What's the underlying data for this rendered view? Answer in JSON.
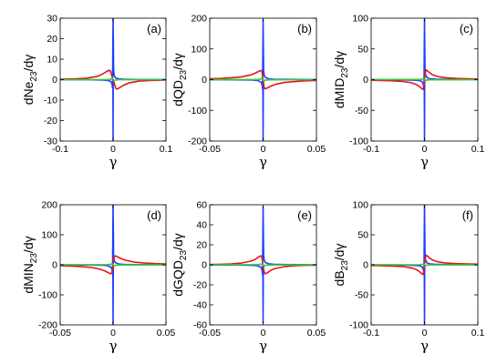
{
  "chart_data": [
    {
      "type": "line",
      "panel_label": "(a)",
      "ylabel": {
        "base": "dNe",
        "sub": "23",
        "tail": "/dγ"
      },
      "xlabel": "γ",
      "xlim": [
        -0.1,
        0.1
      ],
      "ylim": [
        -30,
        30
      ],
      "xticks": [
        -0.1,
        0,
        0.1
      ],
      "xticklabels": [
        "-0.1",
        "0",
        "0.1"
      ],
      "yticks": [
        -30,
        -20,
        -10,
        0,
        10,
        20,
        30
      ],
      "yticklabels": [
        "-30",
        "-20",
        "-10",
        "0",
        "10",
        "20",
        "30"
      ],
      "colors": {
        "blue": "#1f3fff",
        "red": "#e8141a",
        "green": "#33cc33"
      },
      "series": [
        {
          "color_key": "blue",
          "x": [
            -0.1,
            -0.05,
            -0.02,
            -0.01,
            -0.005,
            -0.002,
            -0.001,
            0,
            0.001,
            0.002,
            0.005,
            0.01,
            0.02,
            0.05,
            0.1
          ],
          "y": [
            -0.01,
            -0.05,
            -0.2,
            -0.4,
            -0.8,
            -2,
            -4,
            30,
            5,
            2,
            0.8,
            0.4,
            0.2,
            0.05,
            0.01
          ]
        },
        {
          "color_key": "blue",
          "x": [
            -0.0003,
            0,
            0.0003
          ],
          "y": [
            0,
            -30,
            0
          ]
        },
        {
          "color_key": "red",
          "x": [
            -0.1,
            -0.07,
            -0.05,
            -0.03,
            -0.02,
            -0.012,
            -0.008,
            -0.005,
            -0.002,
            0,
            0.002,
            0.005,
            0.008,
            0.012,
            0.02,
            0.03,
            0.05,
            0.07,
            0.1
          ],
          "y": [
            0.2,
            0.4,
            0.7,
            1.6,
            2.7,
            4.0,
            4.6,
            4.3,
            1.5,
            0,
            -1.5,
            -4.3,
            -4.6,
            -4.0,
            -2.7,
            -1.6,
            -0.7,
            -0.4,
            -0.2
          ]
        },
        {
          "color_key": "green",
          "x": [
            -0.1,
            -0.01,
            -0.003,
            -0.001,
            0,
            0.001,
            0.003,
            0.01,
            0.1
          ],
          "y": [
            0,
            0.05,
            0.3,
            0.6,
            0,
            -0.6,
            -0.3,
            -0.05,
            0
          ]
        }
      ]
    },
    {
      "type": "line",
      "panel_label": "(b)",
      "ylabel": {
        "base": "dQD",
        "sub": "23",
        "tail": "/dγ"
      },
      "xlabel": "γ",
      "xlim": [
        -0.05,
        0.05
      ],
      "ylim": [
        -200,
        200
      ],
      "xticks": [
        -0.05,
        0,
        0.05
      ],
      "xticklabels": [
        "-0.05",
        "0",
        "0.05"
      ],
      "yticks": [
        -200,
        -100,
        0,
        100,
        200
      ],
      "yticklabels": [
        "-200",
        "-100",
        "0",
        "100",
        "200"
      ],
      "colors": {
        "blue": "#1f3fff",
        "red": "#e8141a",
        "green": "#33cc33"
      },
      "series": [
        {
          "color_key": "blue",
          "x": [
            -0.05,
            -0.02,
            -0.01,
            -0.005,
            -0.002,
            -0.001,
            -0.0005,
            0,
            0.0005,
            0.001,
            0.002,
            0.005,
            0.01,
            0.02,
            0.05
          ],
          "y": [
            -0.3,
            -0.8,
            -1.5,
            -3,
            -8,
            -15,
            -30,
            195,
            30,
            15,
            8,
            3,
            1.5,
            0.8,
            0.3
          ]
        },
        {
          "color_key": "blue",
          "x": [
            -0.0002,
            0,
            0.0002
          ],
          "y": [
            0,
            -200,
            0
          ]
        },
        {
          "color_key": "red",
          "x": [
            -0.05,
            -0.04,
            -0.03,
            -0.02,
            -0.012,
            -0.008,
            -0.004,
            -0.002,
            -0.001,
            0,
            0.001,
            0.002,
            0.004,
            0.008,
            0.012,
            0.02,
            0.03,
            0.04,
            0.05
          ],
          "y": [
            3,
            4,
            6,
            9,
            15,
            20,
            27,
            30,
            26,
            0,
            -26,
            -30,
            -27,
            -20,
            -15,
            -9,
            -6,
            -4,
            -3
          ]
        },
        {
          "color_key": "green",
          "x": [
            -0.05,
            -0.005,
            -0.002,
            -0.0008,
            0,
            0.0008,
            0.002,
            0.005,
            0.05
          ],
          "y": [
            0,
            0.5,
            2,
            4,
            0,
            -4,
            -2,
            -0.5,
            0
          ]
        }
      ]
    },
    {
      "type": "line",
      "panel_label": "(c)",
      "ylabel": {
        "base": "dMID",
        "sub": "23",
        "tail": "/dγ"
      },
      "xlabel": "γ",
      "xlim": [
        -0.1,
        0.1
      ],
      "ylim": [
        -100,
        100
      ],
      "xticks": [
        -0.1,
        0,
        0.1
      ],
      "xticklabels": [
        "-0.1",
        "0",
        "0.1"
      ],
      "yticks": [
        -100,
        -50,
        0,
        50,
        100
      ],
      "yticklabels": [
        "-100",
        "-50",
        "0",
        "50",
        "100"
      ],
      "colors": {
        "blue": "#1f3fff",
        "red": "#e8141a",
        "green": "#33cc33"
      },
      "series": [
        {
          "color_key": "blue",
          "x": [
            -0.1,
            -0.05,
            -0.02,
            -0.01,
            -0.005,
            -0.002,
            -0.001,
            0,
            0.001,
            0.002,
            0.005,
            0.01,
            0.02,
            0.05,
            0.1
          ],
          "y": [
            -0.1,
            -0.3,
            -0.8,
            -1.5,
            -3,
            -8,
            -15,
            100,
            15,
            8,
            3,
            1.5,
            0.8,
            0.3,
            0.1
          ]
        },
        {
          "color_key": "blue",
          "x": [
            -0.0004,
            0,
            0.0004
          ],
          "y": [
            0,
            -100,
            0
          ]
        },
        {
          "color_key": "red",
          "x": [
            -0.1,
            -0.06,
            -0.04,
            -0.025,
            -0.015,
            -0.01,
            -0.006,
            -0.003,
            -0.0015,
            0,
            0.0015,
            0.003,
            0.006,
            0.01,
            0.015,
            0.025,
            0.04,
            0.06,
            0.1
          ],
          "y": [
            -1,
            -2,
            -3,
            -5,
            -8,
            -11,
            -14,
            -16,
            -12,
            0,
            12,
            16,
            14,
            11,
            8,
            5,
            3,
            2,
            1
          ]
        },
        {
          "color_key": "green",
          "x": [
            -0.1,
            -0.01,
            -0.004,
            -0.0015,
            0,
            0.0015,
            0.004,
            0.01,
            0.1
          ],
          "y": [
            0,
            0.2,
            0.8,
            1.5,
            0,
            -1.5,
            -0.8,
            -0.2,
            0
          ]
        }
      ]
    },
    {
      "type": "line",
      "panel_label": "(d)",
      "ylabel": {
        "base": "dMIN",
        "sub": "23",
        "tail": "/dγ"
      },
      "xlabel": "γ",
      "xlim": [
        -0.05,
        0.05
      ],
      "ylim": [
        -200,
        200
      ],
      "xticks": [
        -0.05,
        0,
        0.05
      ],
      "xticklabels": [
        "-0.05",
        "0",
        "0.05"
      ],
      "yticks": [
        -200,
        -100,
        0,
        100,
        200
      ],
      "yticklabels": [
        "-200",
        "-100",
        "0",
        "100",
        "200"
      ],
      "colors": {
        "blue": "#1f3fff",
        "red": "#e8141a",
        "green": "#33cc33"
      },
      "series": [
        {
          "color_key": "blue",
          "x": [
            -0.05,
            -0.02,
            -0.01,
            -0.005,
            -0.002,
            -0.001,
            -0.0005,
            0,
            0.0005,
            0.001,
            0.002,
            0.005,
            0.01,
            0.02,
            0.05
          ],
          "y": [
            -0.3,
            -0.8,
            -1.5,
            -3,
            -8,
            -15,
            -30,
            200,
            30,
            15,
            8,
            3,
            1.5,
            0.8,
            0.3
          ]
        },
        {
          "color_key": "blue",
          "x": [
            -0.0002,
            0,
            0.0002
          ],
          "y": [
            0,
            -200,
            0
          ]
        },
        {
          "color_key": "red",
          "x": [
            -0.05,
            -0.04,
            -0.03,
            -0.02,
            -0.012,
            -0.008,
            -0.004,
            -0.002,
            -0.001,
            0,
            0.001,
            0.002,
            0.004,
            0.008,
            0.012,
            0.02,
            0.03,
            0.04,
            0.05
          ],
          "y": [
            -3,
            -4,
            -6,
            -9,
            -15,
            -20,
            -27,
            -30,
            -26,
            0,
            26,
            30,
            27,
            20,
            15,
            9,
            6,
            4,
            3
          ]
        },
        {
          "color_key": "green",
          "x": [
            -0.05,
            -0.005,
            -0.002,
            -0.0008,
            0,
            0.0008,
            0.002,
            0.005,
            0.05
          ],
          "y": [
            0,
            0.5,
            2,
            4,
            0,
            -4,
            -2,
            -0.5,
            0
          ]
        }
      ]
    },
    {
      "type": "line",
      "panel_label": "(e)",
      "ylabel": {
        "base": "dGQD",
        "sub": "23",
        "tail": "/dγ"
      },
      "xlabel": "γ",
      "xlim": [
        -0.05,
        0.05
      ],
      "ylim": [
        -60,
        60
      ],
      "xticks": [
        -0.05,
        0,
        0.05
      ],
      "xticklabels": [
        "-0.05",
        "0",
        "0.05"
      ],
      "yticks": [
        -60,
        -40,
        -20,
        0,
        20,
        40,
        60
      ],
      "yticklabels": [
        "-60",
        "-40",
        "-20",
        "0",
        "20",
        "40",
        "60"
      ],
      "colors": {
        "blue": "#1f3fff",
        "red": "#e8141a",
        "green": "#33cc33"
      },
      "series": [
        {
          "color_key": "blue",
          "x": [
            -0.05,
            -0.02,
            -0.01,
            -0.005,
            -0.002,
            -0.001,
            -0.0005,
            0,
            0.0005,
            0.001,
            0.002,
            0.005,
            0.01,
            0.02,
            0.05
          ],
          "y": [
            -0.1,
            -0.3,
            -0.5,
            -1,
            -2.5,
            -5,
            -10,
            58,
            10,
            5,
            2.5,
            1,
            0.5,
            0.3,
            0.1
          ]
        },
        {
          "color_key": "blue",
          "x": [
            -0.0002,
            0,
            0.0002
          ],
          "y": [
            0,
            -58,
            0
          ]
        },
        {
          "color_key": "red",
          "x": [
            -0.05,
            -0.04,
            -0.03,
            -0.02,
            -0.012,
            -0.008,
            -0.004,
            -0.002,
            -0.001,
            0,
            0.001,
            0.002,
            0.004,
            0.008,
            0.012,
            0.02,
            0.03,
            0.04,
            0.05
          ],
          "y": [
            0.3,
            0.5,
            0.9,
            1.8,
            3.5,
            5,
            8,
            9,
            7,
            0,
            -7,
            -9,
            -8,
            -5,
            -3.5,
            -1.8,
            -0.9,
            -0.5,
            -0.3
          ]
        },
        {
          "color_key": "green",
          "x": [
            -0.05,
            -0.005,
            -0.002,
            -0.0008,
            0,
            0.0008,
            0.002,
            0.005,
            0.05
          ],
          "y": [
            0,
            0.2,
            0.6,
            1.2,
            0,
            -1.2,
            -0.6,
            -0.2,
            0
          ]
        }
      ]
    },
    {
      "type": "line",
      "panel_label": "(f)",
      "ylabel": {
        "base": "dB",
        "sub": "23",
        "tail": "/dγ"
      },
      "xlabel": "γ",
      "xlim": [
        -0.1,
        0.1
      ],
      "ylim": [
        -100,
        100
      ],
      "xticks": [
        -0.1,
        0,
        0.1
      ],
      "xticklabels": [
        "-0.1",
        "0",
        "0.1"
      ],
      "yticks": [
        -100,
        -50,
        0,
        50,
        100
      ],
      "yticklabels": [
        "-100",
        "-50",
        "0",
        "50",
        "100"
      ],
      "colors": {
        "blue": "#1f3fff",
        "red": "#e8141a",
        "green": "#33cc33"
      },
      "series": [
        {
          "color_key": "blue",
          "x": [
            -0.1,
            -0.05,
            -0.02,
            -0.01,
            -0.005,
            -0.002,
            -0.001,
            0,
            0.001,
            0.002,
            0.005,
            0.01,
            0.02,
            0.05,
            0.1
          ],
          "y": [
            -0.1,
            -0.3,
            -0.8,
            -1.5,
            -3,
            -8,
            -15,
            100,
            15,
            8,
            3,
            1.5,
            0.8,
            0.3,
            0.1
          ]
        },
        {
          "color_key": "blue",
          "x": [
            -0.0004,
            0,
            0.0004
          ],
          "y": [
            0,
            -100,
            0
          ]
        },
        {
          "color_key": "red",
          "x": [
            -0.1,
            -0.06,
            -0.04,
            -0.025,
            -0.015,
            -0.01,
            -0.006,
            -0.003,
            -0.0015,
            0,
            0.0015,
            0.003,
            0.006,
            0.01,
            0.015,
            0.025,
            0.04,
            0.06,
            0.1
          ],
          "y": [
            -1,
            -2,
            -3,
            -5,
            -8,
            -11,
            -14,
            -16,
            -12,
            0,
            12,
            16,
            14,
            11,
            8,
            5,
            3,
            2,
            1
          ]
        },
        {
          "color_key": "green",
          "x": [
            -0.1,
            -0.01,
            -0.004,
            -0.0015,
            0,
            0.0015,
            0.004,
            0.01,
            0.1
          ],
          "y": [
            0,
            0.2,
            0.8,
            1.5,
            0,
            -1.5,
            -0.8,
            -0.2,
            0
          ]
        }
      ]
    }
  ]
}
